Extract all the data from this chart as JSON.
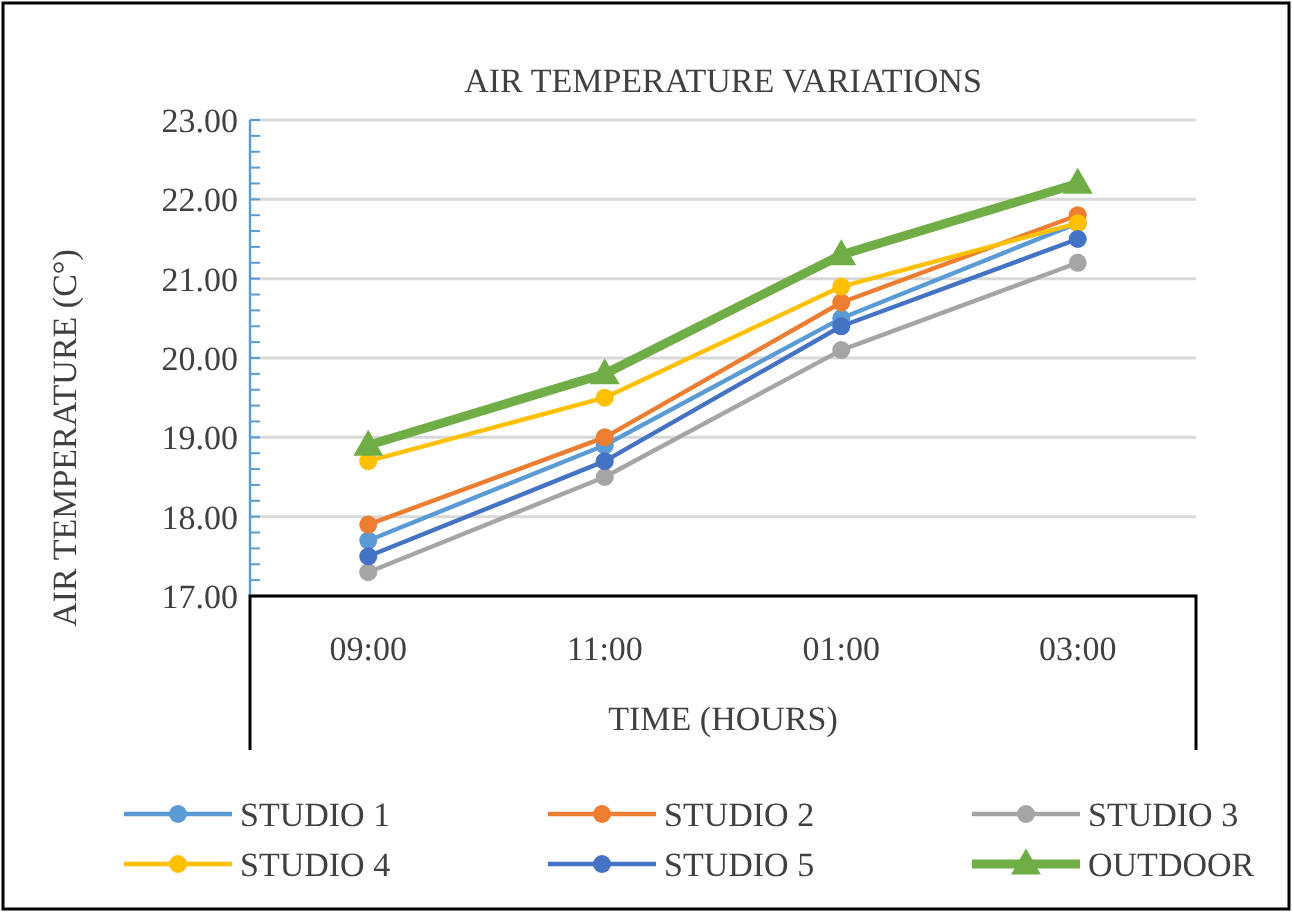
{
  "chart_data": {
    "type": "line",
    "title": "AIR TEMPERATURE VARIATIONS",
    "xlabel": "TIME (HOURS)",
    "ylabel": "AIR TEMPERATURE (C°)",
    "categories": [
      "09:00",
      "11:00",
      "01:00",
      "03:00"
    ],
    "series": [
      {
        "name": "STUDIO 1",
        "color": "#5b9bd5",
        "values": [
          17.7,
          18.9,
          20.5,
          21.7
        ]
      },
      {
        "name": "STUDIO 2",
        "color": "#ed7d31",
        "values": [
          17.9,
          19.0,
          20.7,
          21.8
        ]
      },
      {
        "name": "STUDIO 3",
        "color": "#a5a5a5",
        "values": [
          17.3,
          18.5,
          20.1,
          21.2
        ]
      },
      {
        "name": "STUDIO 4",
        "color": "#ffc000",
        "values": [
          18.7,
          19.5,
          20.9,
          21.7
        ]
      },
      {
        "name": "STUDIO 5",
        "color": "#4472c4",
        "values": [
          17.5,
          18.7,
          20.4,
          21.5
        ]
      },
      {
        "name": "OUTDOOR",
        "color": "#70ad47",
        "values": [
          18.9,
          19.8,
          21.3,
          22.2
        ],
        "marker": "triangle"
      }
    ],
    "marker": "circle",
    "ylim": [
      17,
      23
    ],
    "yticks": [
      {
        "value": 17,
        "label": "17.00"
      },
      {
        "value": 17.2,
        "label": null
      },
      {
        "value": 17.4,
        "label": null
      },
      {
        "value": 17.6,
        "label": null
      },
      {
        "value": 17.8,
        "label": null
      },
      {
        "value": 18,
        "label": "18.00"
      },
      {
        "value": 18.2,
        "label": null
      },
      {
        "value": 18.4,
        "label": null
      },
      {
        "value": 18.6,
        "label": null
      },
      {
        "value": 18.8,
        "label": null
      },
      {
        "value": 19,
        "label": "19.00"
      },
      {
        "value": 19.2,
        "label": null
      },
      {
        "value": 19.4,
        "label": null
      },
      {
        "value": 19.6,
        "label": null
      },
      {
        "value": 19.8,
        "label": null
      },
      {
        "value": 20,
        "label": "20.00"
      },
      {
        "value": 20.2,
        "label": null
      },
      {
        "value": 20.4,
        "label": null
      },
      {
        "value": 20.6,
        "label": null
      },
      {
        "value": 20.8,
        "label": null
      },
      {
        "value": 21,
        "label": "21.00"
      },
      {
        "value": 21.2,
        "label": null
      },
      {
        "value": 21.4,
        "label": null
      },
      {
        "value": 21.6,
        "label": null
      },
      {
        "value": 21.8,
        "label": null
      },
      {
        "value": 22,
        "label": "22.00"
      },
      {
        "value": 22.2,
        "label": null
      },
      {
        "value": 22.4,
        "label": null
      },
      {
        "value": 22.6,
        "label": null
      },
      {
        "value": 22.8,
        "label": null
      },
      {
        "value": 23,
        "label": "23.00"
      }
    ],
    "grid": "y",
    "legend": "bottom"
  }
}
